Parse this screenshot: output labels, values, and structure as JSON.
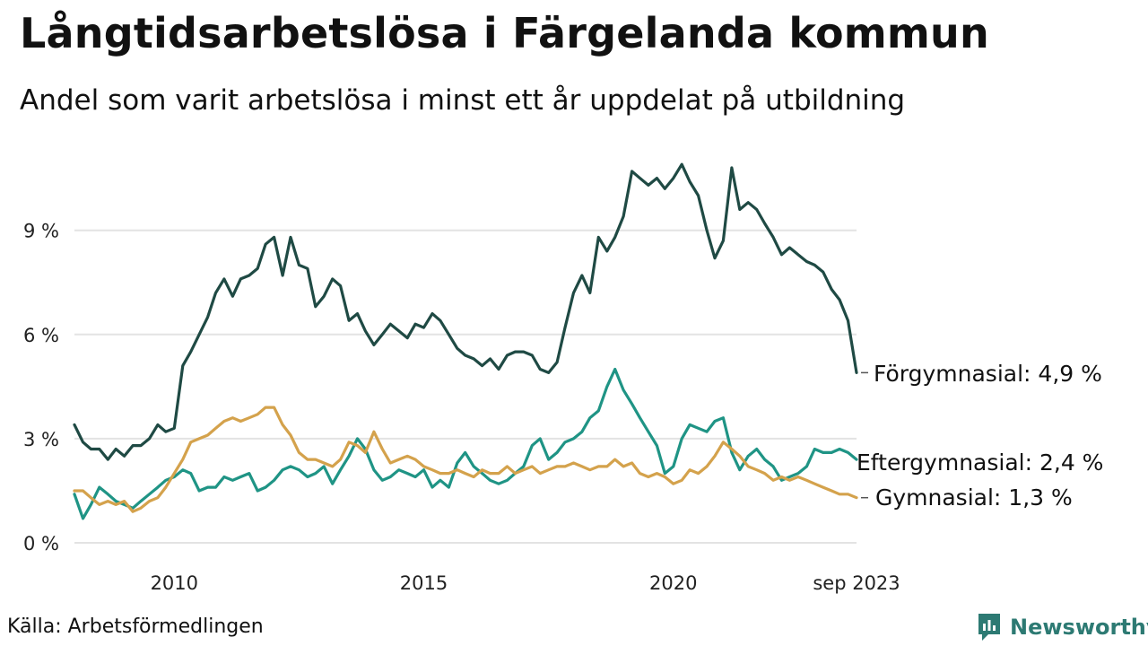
{
  "title": "Långtidsarbetslösa i Färgelanda kommun",
  "subtitle": "Andel som varit arbetslösa i minst ett år uppdelat på utbildning",
  "source": "Källa: Arbetsförmedlingen",
  "brand": "Newsworthy",
  "colors": {
    "forgymnasial": "#1f4a44",
    "eftergymnasial": "#1f9485",
    "gymnasial": "#d4a24c",
    "grid": "#e3e3e3",
    "brand": "#2d7a73"
  },
  "chart_data": {
    "type": "line",
    "title": "Långtidsarbetslösa i Färgelanda kommun",
    "subtitle": "Andel som varit arbetslösa i minst ett år uppdelat på utbildning",
    "xlabel": "",
    "ylabel": "",
    "x_range": [
      2008.0,
      2023.67
    ],
    "ylim": [
      0,
      11.5
    ],
    "grid": true,
    "y_ticks": [
      {
        "value": 0,
        "label": "0 %"
      },
      {
        "value": 3,
        "label": "3 %"
      },
      {
        "value": 6,
        "label": "6 %"
      },
      {
        "value": 9,
        "label": "9 %"
      }
    ],
    "x_ticks": [
      {
        "value": 2010,
        "label": "2010"
      },
      {
        "value": 2015,
        "label": "2015"
      },
      {
        "value": 2020,
        "label": "2020"
      },
      {
        "value": 2023.67,
        "label": "sep 2023"
      }
    ],
    "series": [
      {
        "name": "Förgymnasial",
        "label": "Förgymnasial: 4,9 %",
        "color_key": "forgymnasial",
        "points": [
          [
            2008.0,
            3.4
          ],
          [
            2008.17,
            2.9
          ],
          [
            2008.33,
            2.7
          ],
          [
            2008.5,
            2.7
          ],
          [
            2008.67,
            2.4
          ],
          [
            2008.83,
            2.7
          ],
          [
            2009.0,
            2.5
          ],
          [
            2009.17,
            2.8
          ],
          [
            2009.33,
            2.8
          ],
          [
            2009.5,
            3.0
          ],
          [
            2009.67,
            3.4
          ],
          [
            2009.83,
            3.2
          ],
          [
            2010.0,
            3.3
          ],
          [
            2010.17,
            5.1
          ],
          [
            2010.33,
            5.5
          ],
          [
            2010.5,
            6.0
          ],
          [
            2010.67,
            6.5
          ],
          [
            2010.83,
            7.2
          ],
          [
            2011.0,
            7.6
          ],
          [
            2011.17,
            7.1
          ],
          [
            2011.33,
            7.6
          ],
          [
            2011.5,
            7.7
          ],
          [
            2011.67,
            7.9
          ],
          [
            2011.83,
            8.6
          ],
          [
            2012.0,
            8.8
          ],
          [
            2012.17,
            7.7
          ],
          [
            2012.33,
            8.8
          ],
          [
            2012.5,
            8.0
          ],
          [
            2012.67,
            7.9
          ],
          [
            2012.83,
            6.8
          ],
          [
            2013.0,
            7.1
          ],
          [
            2013.17,
            7.6
          ],
          [
            2013.33,
            7.4
          ],
          [
            2013.5,
            6.4
          ],
          [
            2013.67,
            6.6
          ],
          [
            2013.83,
            6.1
          ],
          [
            2014.0,
            5.7
          ],
          [
            2014.17,
            6.0
          ],
          [
            2014.33,
            6.3
          ],
          [
            2014.5,
            6.1
          ],
          [
            2014.67,
            5.9
          ],
          [
            2014.83,
            6.3
          ],
          [
            2015.0,
            6.2
          ],
          [
            2015.17,
            6.6
          ],
          [
            2015.33,
            6.4
          ],
          [
            2015.5,
            6.0
          ],
          [
            2015.67,
            5.6
          ],
          [
            2015.83,
            5.4
          ],
          [
            2016.0,
            5.3
          ],
          [
            2016.17,
            5.1
          ],
          [
            2016.33,
            5.3
          ],
          [
            2016.5,
            5.0
          ],
          [
            2016.67,
            5.4
          ],
          [
            2016.83,
            5.5
          ],
          [
            2017.0,
            5.5
          ],
          [
            2017.17,
            5.4
          ],
          [
            2017.33,
            5.0
          ],
          [
            2017.5,
            4.9
          ],
          [
            2017.67,
            5.2
          ],
          [
            2017.83,
            6.2
          ],
          [
            2018.0,
            7.2
          ],
          [
            2018.17,
            7.7
          ],
          [
            2018.33,
            7.2
          ],
          [
            2018.5,
            8.8
          ],
          [
            2018.67,
            8.4
          ],
          [
            2018.83,
            8.8
          ],
          [
            2019.0,
            9.4
          ],
          [
            2019.17,
            10.7
          ],
          [
            2019.33,
            10.5
          ],
          [
            2019.5,
            10.3
          ],
          [
            2019.67,
            10.5
          ],
          [
            2019.83,
            10.2
          ],
          [
            2020.0,
            10.5
          ],
          [
            2020.17,
            10.9
          ],
          [
            2020.33,
            10.4
          ],
          [
            2020.5,
            10.0
          ],
          [
            2020.67,
            9.0
          ],
          [
            2020.83,
            8.2
          ],
          [
            2021.0,
            8.7
          ],
          [
            2021.17,
            10.8
          ],
          [
            2021.33,
            9.6
          ],
          [
            2021.5,
            9.8
          ],
          [
            2021.67,
            9.6
          ],
          [
            2021.83,
            9.2
          ],
          [
            2022.0,
            8.8
          ],
          [
            2022.17,
            8.3
          ],
          [
            2022.33,
            8.5
          ],
          [
            2022.5,
            8.3
          ],
          [
            2022.67,
            8.1
          ],
          [
            2022.83,
            8.0
          ],
          [
            2023.0,
            7.8
          ],
          [
            2023.17,
            7.3
          ],
          [
            2023.33,
            7.0
          ],
          [
            2023.5,
            6.4
          ],
          [
            2023.67,
            4.9
          ]
        ],
        "values_note": "monthly line 2008-sep 2023"
      },
      {
        "name": "Eftergymnasial",
        "label": "Eftergymnasial: 2,4 %",
        "color_key": "eftergymnasial",
        "points": [
          [
            2008.0,
            1.4
          ],
          [
            2008.17,
            0.7
          ],
          [
            2008.33,
            1.1
          ],
          [
            2008.5,
            1.6
          ],
          [
            2008.67,
            1.4
          ],
          [
            2008.83,
            1.2
          ],
          [
            2009.0,
            1.1
          ],
          [
            2009.17,
            1.0
          ],
          [
            2009.33,
            1.2
          ],
          [
            2009.5,
            1.4
          ],
          [
            2009.67,
            1.6
          ],
          [
            2009.83,
            1.8
          ],
          [
            2010.0,
            1.9
          ],
          [
            2010.17,
            2.1
          ],
          [
            2010.33,
            2.0
          ],
          [
            2010.5,
            1.5
          ],
          [
            2010.67,
            1.6
          ],
          [
            2010.83,
            1.6
          ],
          [
            2011.0,
            1.9
          ],
          [
            2011.17,
            1.8
          ],
          [
            2011.33,
            1.9
          ],
          [
            2011.5,
            2.0
          ],
          [
            2011.67,
            1.5
          ],
          [
            2011.83,
            1.6
          ],
          [
            2012.0,
            1.8
          ],
          [
            2012.17,
            2.1
          ],
          [
            2012.33,
            2.2
          ],
          [
            2012.5,
            2.1
          ],
          [
            2012.67,
            1.9
          ],
          [
            2012.83,
            2.0
          ],
          [
            2013.0,
            2.2
          ],
          [
            2013.17,
            1.7
          ],
          [
            2013.33,
            2.1
          ],
          [
            2013.5,
            2.5
          ],
          [
            2013.67,
            3.0
          ],
          [
            2013.83,
            2.7
          ],
          [
            2014.0,
            2.1
          ],
          [
            2014.17,
            1.8
          ],
          [
            2014.33,
            1.9
          ],
          [
            2014.5,
            2.1
          ],
          [
            2014.67,
            2.0
          ],
          [
            2014.83,
            1.9
          ],
          [
            2015.0,
            2.1
          ],
          [
            2015.17,
            1.6
          ],
          [
            2015.33,
            1.8
          ],
          [
            2015.5,
            1.6
          ],
          [
            2015.67,
            2.3
          ],
          [
            2015.83,
            2.6
          ],
          [
            2016.0,
            2.2
          ],
          [
            2016.17,
            2.0
          ],
          [
            2016.33,
            1.8
          ],
          [
            2016.5,
            1.7
          ],
          [
            2016.67,
            1.8
          ],
          [
            2016.83,
            2.0
          ],
          [
            2017.0,
            2.2
          ],
          [
            2017.17,
            2.8
          ],
          [
            2017.33,
            3.0
          ],
          [
            2017.5,
            2.4
          ],
          [
            2017.67,
            2.6
          ],
          [
            2017.83,
            2.9
          ],
          [
            2018.0,
            3.0
          ],
          [
            2018.17,
            3.2
          ],
          [
            2018.33,
            3.6
          ],
          [
            2018.5,
            3.8
          ],
          [
            2018.67,
            4.5
          ],
          [
            2018.83,
            5.0
          ],
          [
            2019.0,
            4.4
          ],
          [
            2019.17,
            4.0
          ],
          [
            2019.33,
            3.6
          ],
          [
            2019.5,
            3.2
          ],
          [
            2019.67,
            2.8
          ],
          [
            2019.83,
            2.0
          ],
          [
            2020.0,
            2.2
          ],
          [
            2020.17,
            3.0
          ],
          [
            2020.33,
            3.4
          ],
          [
            2020.5,
            3.3
          ],
          [
            2020.67,
            3.2
          ],
          [
            2020.83,
            3.5
          ],
          [
            2021.0,
            3.6
          ],
          [
            2021.17,
            2.6
          ],
          [
            2021.33,
            2.1
          ],
          [
            2021.5,
            2.5
          ],
          [
            2021.67,
            2.7
          ],
          [
            2021.83,
            2.4
          ],
          [
            2022.0,
            2.2
          ],
          [
            2022.17,
            1.8
          ],
          [
            2022.33,
            1.9
          ],
          [
            2022.5,
            2.0
          ],
          [
            2022.67,
            2.2
          ],
          [
            2022.83,
            2.7
          ],
          [
            2023.0,
            2.6
          ],
          [
            2023.17,
            2.6
          ],
          [
            2023.33,
            2.7
          ],
          [
            2023.5,
            2.6
          ],
          [
            2023.67,
            2.4
          ]
        ]
      },
      {
        "name": "Gymnasial",
        "label": "Gymnasial: 1,3 %",
        "color_key": "gymnasial",
        "points": [
          [
            2008.0,
            1.5
          ],
          [
            2008.17,
            1.5
          ],
          [
            2008.33,
            1.3
          ],
          [
            2008.5,
            1.1
          ],
          [
            2008.67,
            1.2
          ],
          [
            2008.83,
            1.1
          ],
          [
            2009.0,
            1.2
          ],
          [
            2009.17,
            0.9
          ],
          [
            2009.33,
            1.0
          ],
          [
            2009.5,
            1.2
          ],
          [
            2009.67,
            1.3
          ],
          [
            2009.83,
            1.6
          ],
          [
            2010.0,
            2.0
          ],
          [
            2010.17,
            2.4
          ],
          [
            2010.33,
            2.9
          ],
          [
            2010.5,
            3.0
          ],
          [
            2010.67,
            3.1
          ],
          [
            2010.83,
            3.3
          ],
          [
            2011.0,
            3.5
          ],
          [
            2011.17,
            3.6
          ],
          [
            2011.33,
            3.5
          ],
          [
            2011.5,
            3.6
          ],
          [
            2011.67,
            3.7
          ],
          [
            2011.83,
            3.9
          ],
          [
            2012.0,
            3.9
          ],
          [
            2012.17,
            3.4
          ],
          [
            2012.33,
            3.1
          ],
          [
            2012.5,
            2.6
          ],
          [
            2012.67,
            2.4
          ],
          [
            2012.83,
            2.4
          ],
          [
            2013.0,
            2.3
          ],
          [
            2013.17,
            2.2
          ],
          [
            2013.33,
            2.4
          ],
          [
            2013.5,
            2.9
          ],
          [
            2013.67,
            2.8
          ],
          [
            2013.83,
            2.6
          ],
          [
            2014.0,
            3.2
          ],
          [
            2014.17,
            2.7
          ],
          [
            2014.33,
            2.3
          ],
          [
            2014.5,
            2.4
          ],
          [
            2014.67,
            2.5
          ],
          [
            2014.83,
            2.4
          ],
          [
            2015.0,
            2.2
          ],
          [
            2015.17,
            2.1
          ],
          [
            2015.33,
            2.0
          ],
          [
            2015.5,
            2.0
          ],
          [
            2015.67,
            2.1
          ],
          [
            2015.83,
            2.0
          ],
          [
            2016.0,
            1.9
          ],
          [
            2016.17,
            2.1
          ],
          [
            2016.33,
            2.0
          ],
          [
            2016.5,
            2.0
          ],
          [
            2016.67,
            2.2
          ],
          [
            2016.83,
            2.0
          ],
          [
            2017.0,
            2.1
          ],
          [
            2017.17,
            2.2
          ],
          [
            2017.33,
            2.0
          ],
          [
            2017.5,
            2.1
          ],
          [
            2017.67,
            2.2
          ],
          [
            2017.83,
            2.2
          ],
          [
            2018.0,
            2.3
          ],
          [
            2018.17,
            2.2
          ],
          [
            2018.33,
            2.1
          ],
          [
            2018.5,
            2.2
          ],
          [
            2018.67,
            2.2
          ],
          [
            2018.83,
            2.4
          ],
          [
            2019.0,
            2.2
          ],
          [
            2019.17,
            2.3
          ],
          [
            2019.33,
            2.0
          ],
          [
            2019.5,
            1.9
          ],
          [
            2019.67,
            2.0
          ],
          [
            2019.83,
            1.9
          ],
          [
            2020.0,
            1.7
          ],
          [
            2020.17,
            1.8
          ],
          [
            2020.33,
            2.1
          ],
          [
            2020.5,
            2.0
          ],
          [
            2020.67,
            2.2
          ],
          [
            2020.83,
            2.5
          ],
          [
            2021.0,
            2.9
          ],
          [
            2021.17,
            2.7
          ],
          [
            2021.33,
            2.5
          ],
          [
            2021.5,
            2.2
          ],
          [
            2021.67,
            2.1
          ],
          [
            2021.83,
            2.0
          ],
          [
            2022.0,
            1.8
          ],
          [
            2022.17,
            1.9
          ],
          [
            2022.33,
            1.8
          ],
          [
            2022.5,
            1.9
          ],
          [
            2022.67,
            1.8
          ],
          [
            2022.83,
            1.7
          ],
          [
            2023.0,
            1.6
          ],
          [
            2023.17,
            1.5
          ],
          [
            2023.33,
            1.4
          ],
          [
            2023.5,
            1.4
          ],
          [
            2023.67,
            1.3
          ]
        ]
      }
    ]
  }
}
